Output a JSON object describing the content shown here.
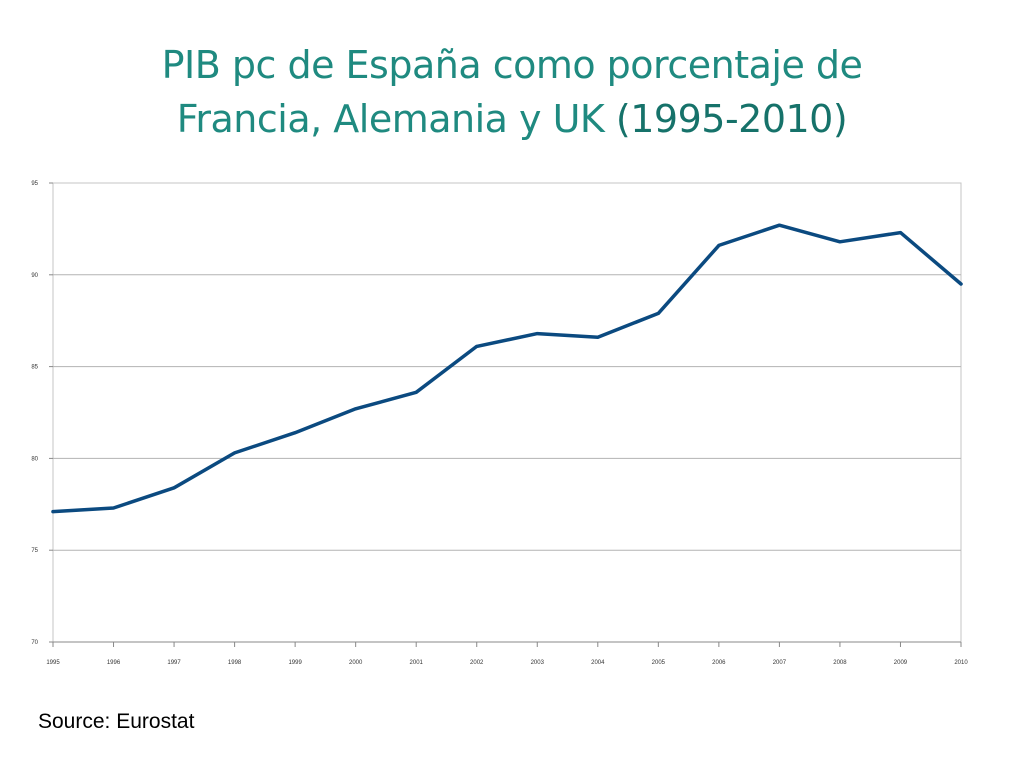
{
  "title": {
    "line1": "PIB pc de España como porcentaje de",
    "line2_main": "Francia, Alemania y UK ",
    "line2_years": "(1995-2010)"
  },
  "source": "Source: Eurostat",
  "colors": {
    "title": "#1f8a80",
    "series": "#0b4a80",
    "grid": "#b3b3b3",
    "axis": "#888888"
  },
  "chart_data": {
    "type": "line",
    "title": "PIB pc de España como porcentaje de Francia, Alemania y UK (1995-2010)",
    "xlabel": "",
    "ylabel": "",
    "x": [
      "1995",
      "1996",
      "1997",
      "1998",
      "1999",
      "2000",
      "2001",
      "2002",
      "2003",
      "2004",
      "2005",
      "2006",
      "2007",
      "2008",
      "2009",
      "2010"
    ],
    "series": [
      {
        "values": [
          77.1,
          77.3,
          78.4,
          80.3,
          81.4,
          82.7,
          83.6,
          86.1,
          86.8,
          86.6,
          87.9,
          91.6,
          92.7,
          91.8,
          92.3,
          89.5
        ]
      }
    ],
    "ylim": [
      70,
      95
    ],
    "yticks": [
      "70",
      "75",
      "80",
      "85",
      "90",
      "95"
    ],
    "grid": true,
    "legend": "none"
  }
}
